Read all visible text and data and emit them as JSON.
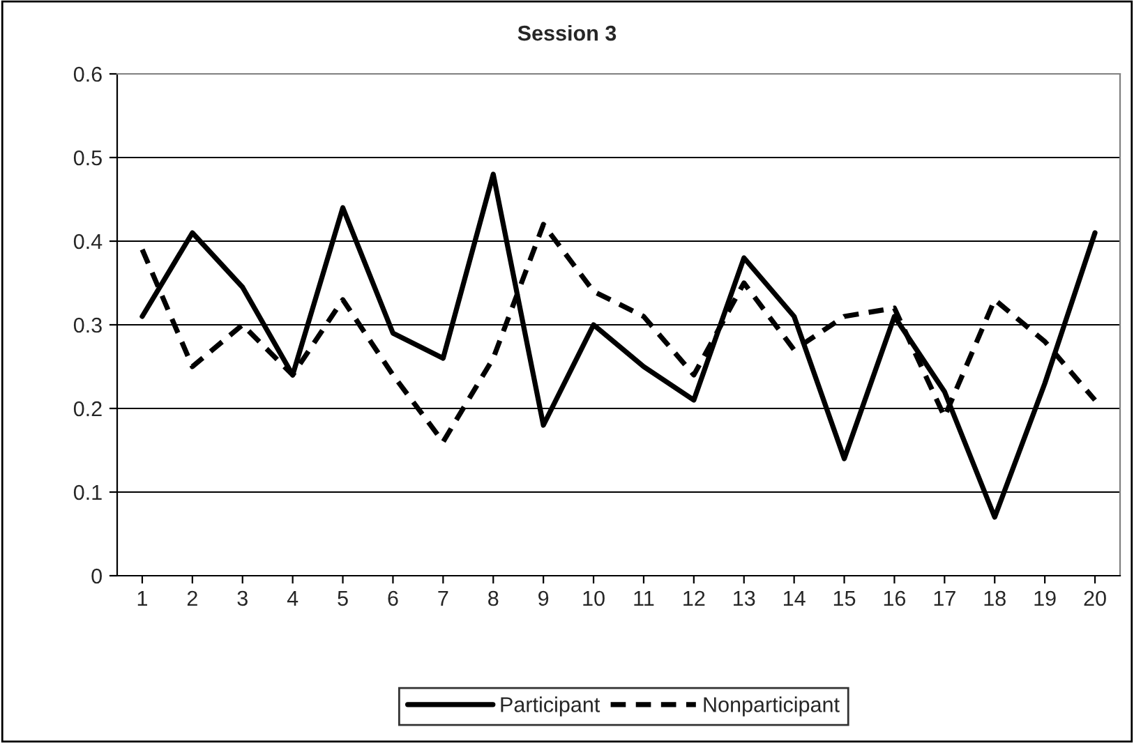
{
  "chart_data": {
    "type": "line",
    "title": "Session 3",
    "categories": [
      "1",
      "2",
      "3",
      "4",
      "5",
      "6",
      "7",
      "8",
      "9",
      "10",
      "11",
      "12",
      "13",
      "14",
      "15",
      "16",
      "17",
      "18",
      "19",
      "20"
    ],
    "series": [
      {
        "name": "Participant",
        "color": "#000000",
        "line_style": "solid",
        "values": [
          0.31,
          0.41,
          0.345,
          0.24,
          0.44,
          0.29,
          0.26,
          0.48,
          0.18,
          0.3,
          0.25,
          0.21,
          0.38,
          0.31,
          0.14,
          0.31,
          0.22,
          0.07,
          0.23,
          0.41
        ]
      },
      {
        "name": "Nonparticipant",
        "color": "#000000",
        "line_style": "dashed",
        "values": [
          0.39,
          0.25,
          0.3,
          0.24,
          0.33,
          0.24,
          0.16,
          0.26,
          0.42,
          0.34,
          0.31,
          0.24,
          0.35,
          0.27,
          0.31,
          0.32,
          0.19,
          0.33,
          0.28,
          0.21
        ]
      }
    ],
    "ylim": [
      0,
      0.6
    ],
    "yticks": [
      0,
      0.1,
      0.2,
      0.3,
      0.4,
      0.5,
      0.6
    ],
    "grid": "y",
    "legend": "bottom",
    "marker": "none"
  }
}
